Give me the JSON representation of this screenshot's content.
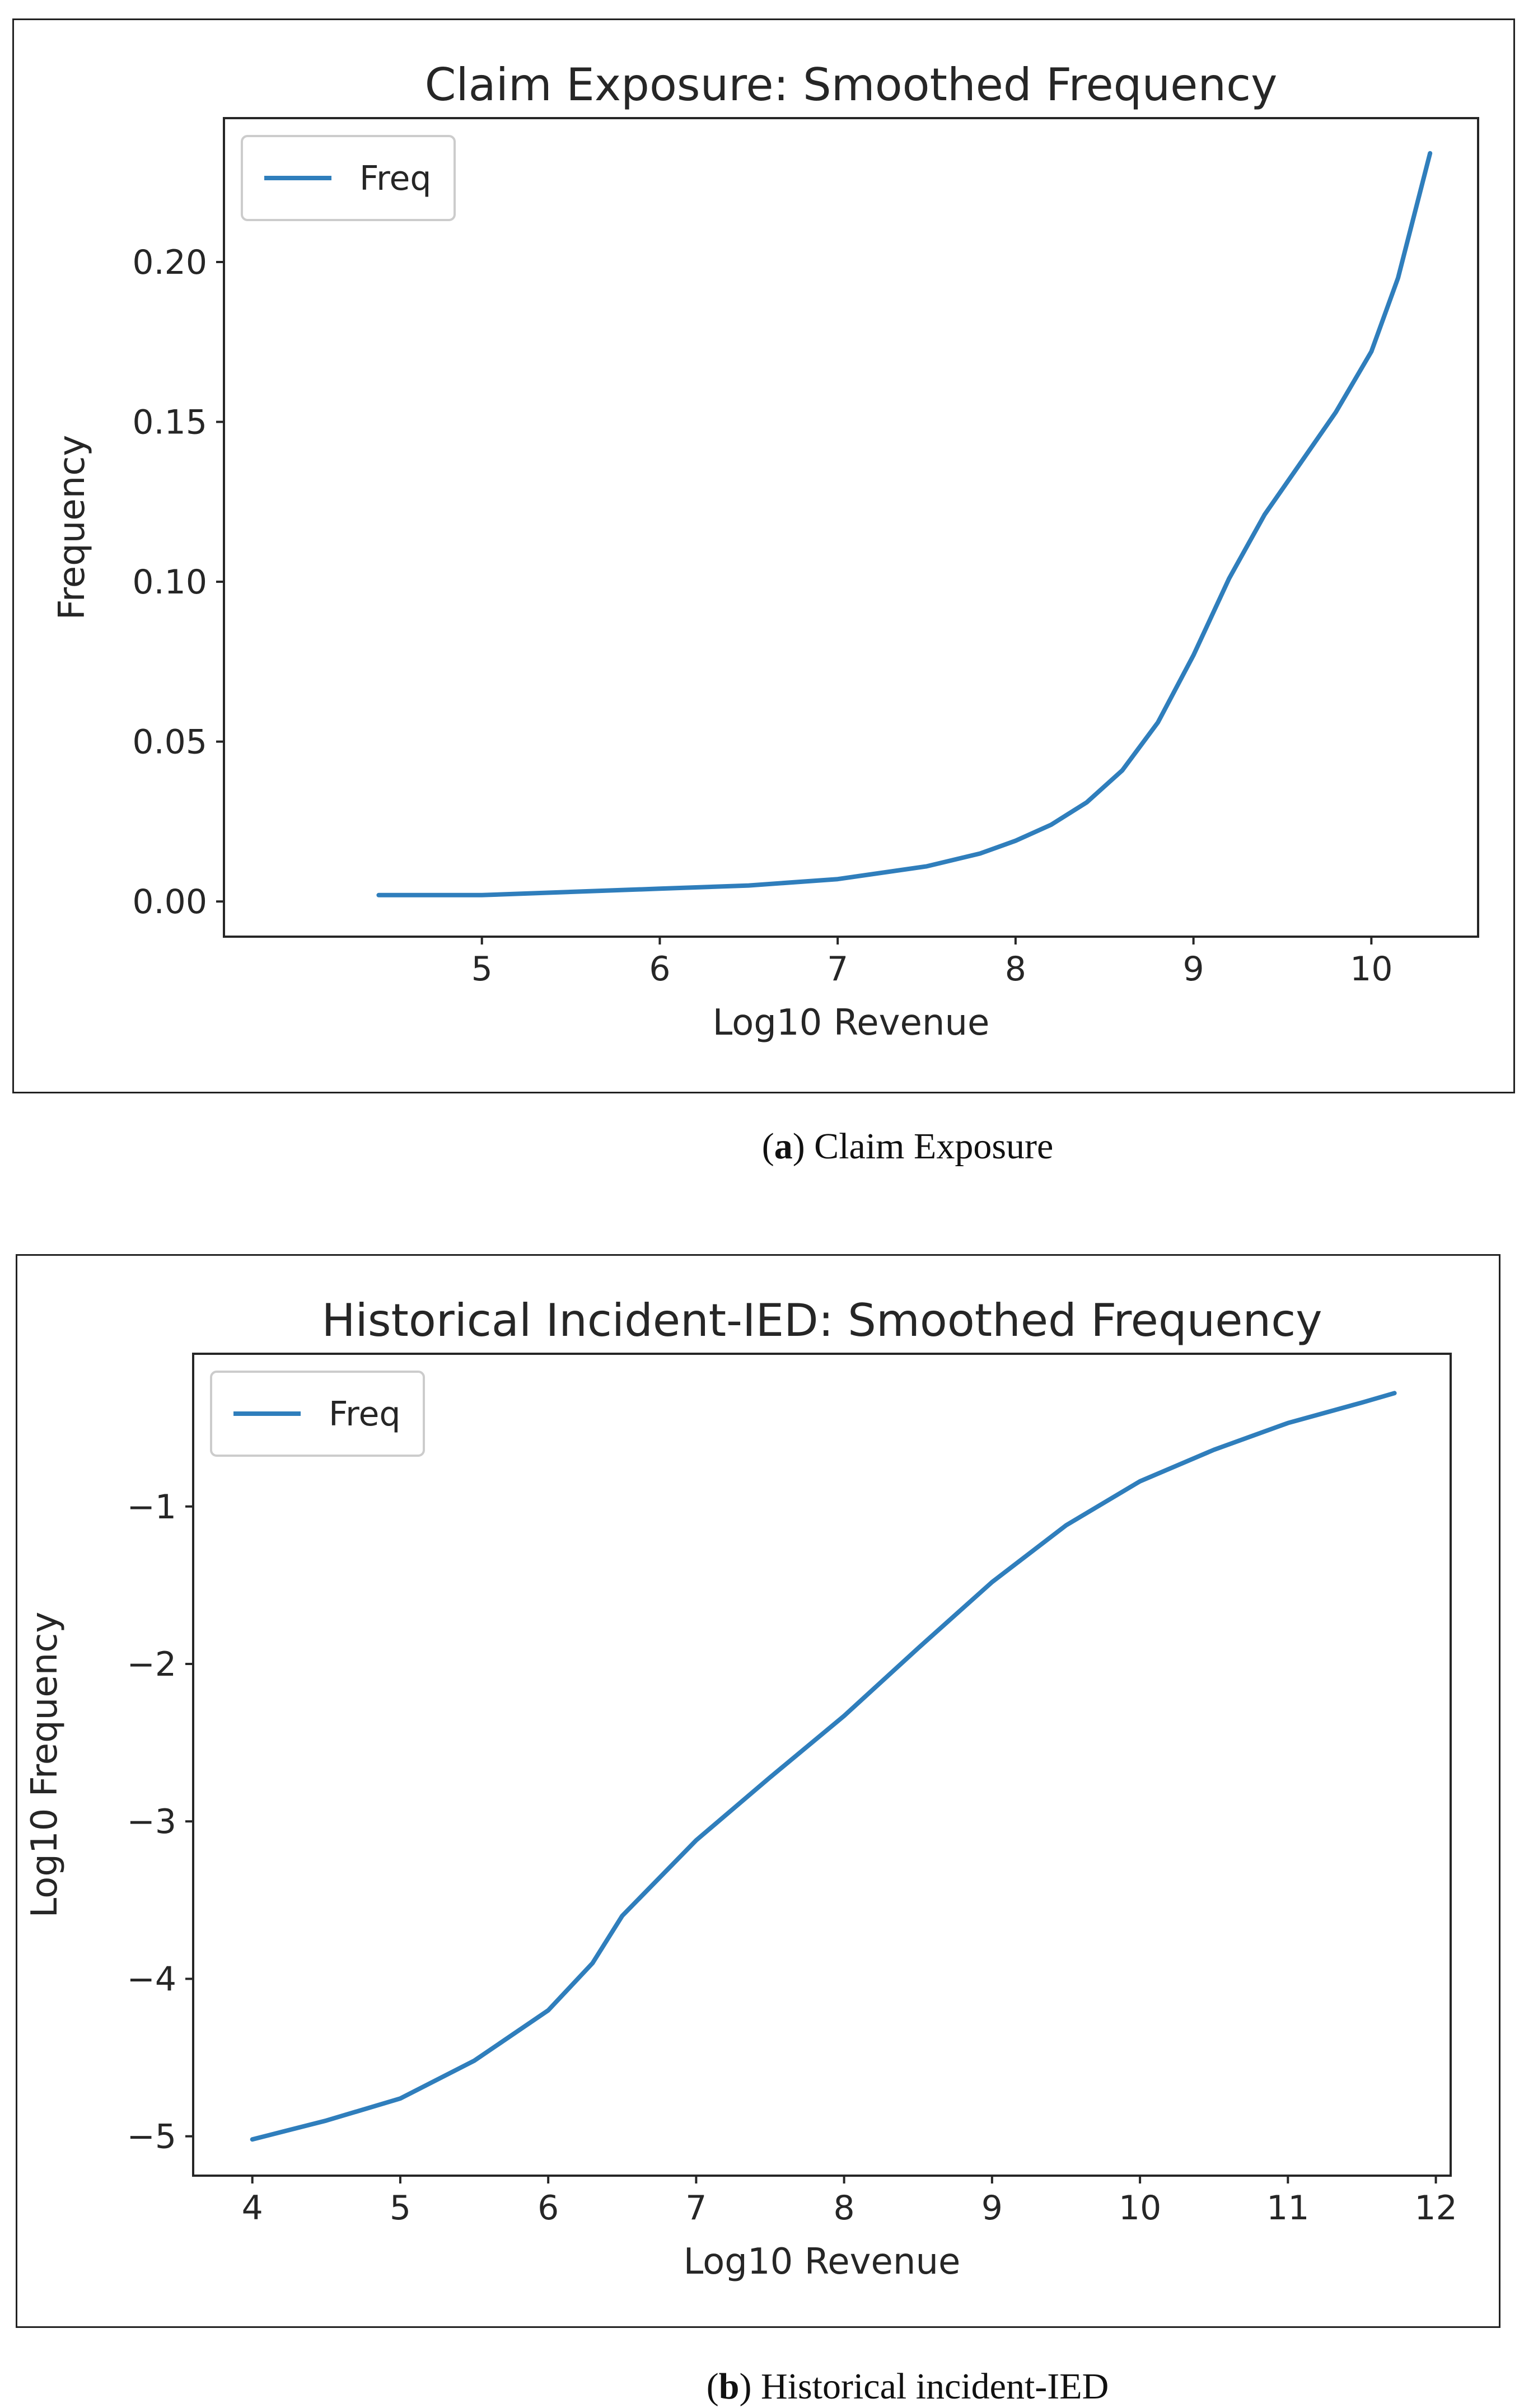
{
  "chart_data": [
    {
      "type": "line",
      "title": "Claim Exposure: Smoothed Frequency",
      "xlabel": "Log10 Revenue",
      "ylabel": "Frequency",
      "xlim": [
        3.55,
        10.6
      ],
      "ylim": [
        -0.011,
        0.245
      ],
      "xticks": [
        "5",
        "6",
        "7",
        "8",
        "9",
        "10"
      ],
      "xtick_values": [
        5,
        6,
        7,
        8,
        9,
        10
      ],
      "yticks": [
        "0.00",
        "0.05",
        "0.10",
        "0.15",
        "0.20"
      ],
      "ytick_values": [
        0,
        0.05,
        0.1,
        0.15,
        0.2
      ],
      "legend": {
        "position": "top-left",
        "entries": [
          "Freq"
        ]
      },
      "grid": false,
      "color": "#2f7ebc",
      "series": [
        {
          "name": "Freq",
          "x": [
            4.42,
            5.0,
            5.5,
            6.0,
            6.5,
            7.0,
            7.5,
            7.8,
            8.0,
            8.2,
            8.4,
            8.6,
            8.8,
            9.0,
            9.2,
            9.4,
            9.6,
            9.8,
            10.0,
            10.15,
            10.33
          ],
          "y": [
            0.002,
            0.002,
            0.003,
            0.004,
            0.005,
            0.007,
            0.011,
            0.015,
            0.019,
            0.024,
            0.031,
            0.041,
            0.056,
            0.077,
            0.101,
            0.121,
            0.137,
            0.153,
            0.172,
            0.195,
            0.234
          ]
        }
      ],
      "caption_label": "a",
      "caption_text": " Claim Exposure"
    },
    {
      "type": "line",
      "title": "Historical Incident-IED: Smoothed Frequency",
      "xlabel": "Log10 Revenue",
      "ylabel": "Log10 Frequency",
      "xlim": [
        3.6,
        12.1
      ],
      "ylim": [
        -5.25,
        -0.03
      ],
      "xticks": [
        "4",
        "5",
        "6",
        "7",
        "8",
        "9",
        "10",
        "11",
        "12"
      ],
      "xtick_values": [
        4,
        5,
        6,
        7,
        8,
        9,
        10,
        11,
        12
      ],
      "yticks": [
        "−1",
        "−2",
        "−3",
        "−4",
        "−5"
      ],
      "ytick_values": [
        -1,
        -2,
        -3,
        -4,
        -5
      ],
      "legend": {
        "position": "top-left",
        "entries": [
          "Freq"
        ]
      },
      "grid": false,
      "color": "#2f7ebc",
      "series": [
        {
          "name": "Freq",
          "x": [
            4.0,
            4.5,
            5.0,
            5.5,
            6.0,
            6.3,
            6.5,
            7.0,
            7.5,
            8.0,
            8.5,
            9.0,
            9.5,
            10.0,
            10.5,
            11.0,
            11.5,
            11.72
          ],
          "y": [
            -5.02,
            -4.9,
            -4.76,
            -4.52,
            -4.2,
            -3.9,
            -3.6,
            -3.12,
            -2.72,
            -2.33,
            -1.9,
            -1.48,
            -1.12,
            -0.84,
            -0.64,
            -0.47,
            -0.34,
            -0.28
          ]
        }
      ],
      "caption_label": "b",
      "caption_text": " Historical incident-IED"
    }
  ]
}
